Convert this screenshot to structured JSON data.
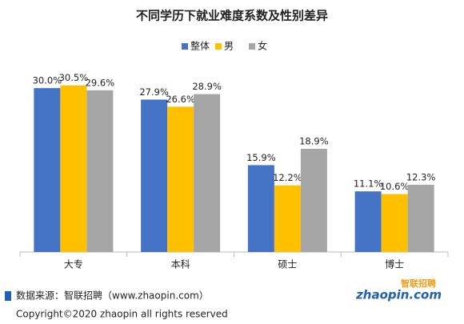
{
  "chart_data": {
    "type": "bar",
    "title": "不同学历下就业难度系数及性别差异",
    "categories": [
      "大专",
      "本科",
      "硕士",
      "博士"
    ],
    "series": [
      {
        "name": "整体",
        "color": "#4472c4",
        "values": [
          30.0,
          27.9,
          15.9,
          11.1
        ],
        "value_labels": [
          "30.0%",
          "27.9%",
          "15.9%",
          "11.1%"
        ]
      },
      {
        "name": "男",
        "color": "#ffc000",
        "values": [
          30.5,
          26.6,
          12.2,
          10.6
        ],
        "value_labels": [
          "30.5%",
          "26.6%",
          "12.2%",
          "10.6%"
        ]
      },
      {
        "name": "女",
        "color": "#a5a5a5",
        "values": [
          29.6,
          28.9,
          18.9,
          12.3
        ],
        "value_labels": [
          "29.6%",
          "28.9%",
          "18.9%",
          "12.3%"
        ]
      }
    ],
    "ylim": [
      0,
      35
    ],
    "legend": "top"
  },
  "footer": {
    "source": "数据来源：智联招聘（www.zhaopin.com）",
    "copyright": "Copyright©2020 zhaopin all rights reserved",
    "logo": "zhaopin.com",
    "logo_cn": "智联招聘"
  }
}
